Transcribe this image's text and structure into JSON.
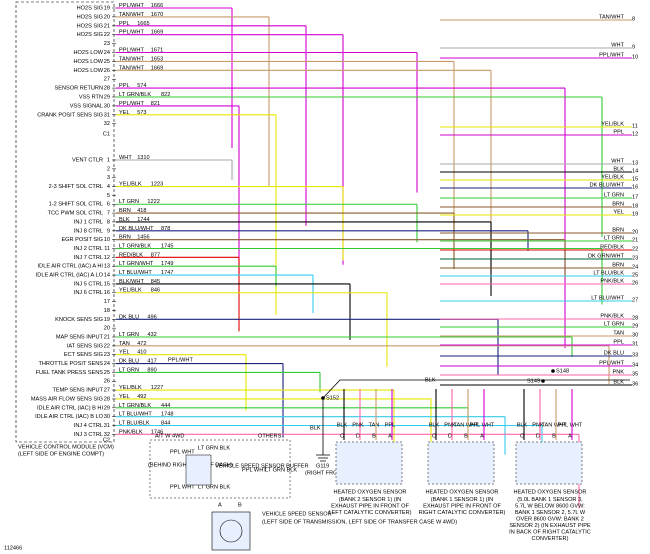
{
  "module": {
    "name": "VEHICLE CONTROL MODULE (VCM)",
    "location": "(LEFT SIDE OF ENGINE COMPT)",
    "c1": "C1",
    "c2": "C2"
  },
  "c1_rows": [
    {
      "pin": "19",
      "name": "HO2S SIG",
      "wire": "PPL/WHT",
      "circuit": "1666"
    },
    {
      "pin": "20",
      "name": "HO2S SIG",
      "wire": "TAN/WHT",
      "circuit": "1670"
    },
    {
      "pin": "21",
      "name": "HO2S SIG",
      "wire": "PPL",
      "circuit": "1665"
    },
    {
      "pin": "22",
      "name": "HO2S SIG",
      "wire": "PPL/WHT",
      "circuit": "1669"
    },
    {
      "pin": "23"
    },
    {
      "pin": "24",
      "name": "HO2S LOW",
      "wire": "PPL/WHT",
      "circuit": "1671"
    },
    {
      "pin": "25",
      "name": "HO2S LOW",
      "wire": "TAN/WHT",
      "circuit": "1653"
    },
    {
      "pin": "26",
      "name": "HO2S LOW",
      "wire": "TAN/WHT",
      "circuit": "1669"
    },
    {
      "pin": "27"
    },
    {
      "pin": "28",
      "name": "SENSOR RETURN",
      "wire": "PPL",
      "circuit": "574"
    },
    {
      "pin": "29",
      "name": "VSS RTN",
      "wire": "LT GRN/BLK",
      "circuit": "822"
    },
    {
      "pin": "30",
      "name": "VSS SIGNAL",
      "wire": "PPL/WHT",
      "circuit": "821"
    },
    {
      "pin": "31",
      "name": "CRANK POSIT SENS SIG",
      "wire": "YEL",
      "circuit": "573"
    },
    {
      "pin": "32"
    }
  ],
  "c2_rows": [
    {
      "pin": "1",
      "name": "VENT CTLR",
      "wire": "WHT",
      "circuit": "1310"
    },
    {
      "pin": "2"
    },
    {
      "pin": "3"
    },
    {
      "pin": "4",
      "name": "2-3 SHIFT SOL CTRL",
      "wire": "YEL/BLK",
      "circuit": "1223"
    },
    {
      "pin": "5"
    },
    {
      "pin": "6",
      "name": "1-2 SHIFT SOL CTRL",
      "wire": "LT GRN",
      "circuit": "1222"
    },
    {
      "pin": "7",
      "name": "TCC PWM SOL CTRL",
      "wire": "BRN",
      "circuit": "418"
    },
    {
      "pin": "8",
      "name": "INJ 1 CTRL",
      "wire": "BLK",
      "circuit": "1744"
    },
    {
      "pin": "9",
      "name": "INJ 8 CTRL",
      "wire": "DK BLU/WHT",
      "circuit": "878"
    },
    {
      "pin": "10",
      "name": "EGR POSIT SIG",
      "wire": "BRN",
      "circuit": "1456"
    },
    {
      "pin": "11",
      "name": "INJ 2 CTRL",
      "wire": "LT GRN/BLK",
      "circuit": "1745"
    },
    {
      "pin": "12",
      "name": "INJ 7 CTRL",
      "wire": "RED/BLK",
      "circuit": "877"
    },
    {
      "pin": "13",
      "name": "IDLE AIR CTRL (IAC) A HI",
      "wire": "LT GRN/WHT",
      "circuit": "1749"
    },
    {
      "pin": "14",
      "name": "IDLE AIR CTRL (IAC) A LO",
      "wire": "LT BLU/WHT",
      "circuit": "1747"
    },
    {
      "pin": "15",
      "name": "INJ 5 CTRL",
      "wire": "BLK/WHT",
      "circuit": "845"
    },
    {
      "pin": "16",
      "name": "INJ 6 CTRL",
      "wire": "YEL/BLK",
      "circuit": "846"
    },
    {
      "pin": "17"
    },
    {
      "pin": "18"
    },
    {
      "pin": "19",
      "name": "KNOCK SENS SIG",
      "wire": "DK BLU",
      "circuit": "496"
    },
    {
      "pin": "20"
    },
    {
      "pin": "21",
      "name": "MAP SENS INPUT",
      "wire": "LT GRN",
      "circuit": "432"
    },
    {
      "pin": "22",
      "name": "IAT SENS SIG",
      "wire": "TAN",
      "circuit": "472"
    },
    {
      "pin": "23",
      "name": "ECT SENS SIG",
      "wire": "YEL",
      "circuit": "410"
    },
    {
      "pin": "24",
      "name": "THROTTLE POSIT SENS",
      "wire": "DK BLU",
      "circuit": "417"
    },
    {
      "pin": "25",
      "name": "FUEL TANK PRESS SENS",
      "wire": "LT GRN",
      "circuit": "890"
    },
    {
      "pin": "26"
    },
    {
      "pin": "27",
      "name": "TEMP SENS INPUT",
      "wire": "YEL/BLK",
      "circuit": "1227"
    },
    {
      "pin": "28",
      "name": "MASS AIR FLOW SENS SIG",
      "wire": "YEL",
      "circuit": "492"
    },
    {
      "pin": "29",
      "name": "IDLE AIR CTRL (IAC) B HI",
      "wire": "LT GRN/BLK",
      "circuit": "444"
    },
    {
      "pin": "30",
      "name": "IDLE AIR CTRL (IAC) B LO",
      "wire": "LT BLU/WHT",
      "circuit": "1748"
    },
    {
      "pin": "31",
      "name": "INJ 4 CTRL",
      "wire": "LT BLU/BLK",
      "circuit": "844"
    },
    {
      "pin": "32",
      "name": "INJ 3 CTRL",
      "wire": "PNK/BLK",
      "circuit": "1746"
    }
  ],
  "right_labels": [
    {
      "wire": "TAN/WHT",
      "pin": "8"
    },
    {
      "wire": "WHT",
      "pin": "9"
    },
    {
      "wire": "PPL/WHT",
      "pin": "10"
    },
    {
      "wire": "YEL/BLK",
      "pin": "11"
    },
    {
      "wire": "PPL",
      "pin": "12"
    },
    {
      "wire": "WHT",
      "pin": "13"
    },
    {
      "wire": "BLK",
      "pin": "14"
    },
    {
      "wire": "YEL/BLK",
      "pin": "15"
    },
    {
      "wire": "DK BLU/WHT",
      "pin": "16"
    },
    {
      "wire": "LT GRN",
      "pin": "17"
    },
    {
      "wire": "BRN",
      "pin": "18"
    },
    {
      "wire": "YEL",
      "pin": "19"
    },
    {
      "wire": "BRN",
      "pin": "20"
    },
    {
      "wire": "LT GRN",
      "pin": "21"
    },
    {
      "wire": "RED/BLK",
      "pin": "22"
    },
    {
      "wire": "DK GRN/WHT",
      "pin": "23"
    },
    {
      "wire": "BRN",
      "pin": "24"
    },
    {
      "wire": "LT BLU/BLK",
      "pin": "25"
    },
    {
      "wire": "PNK/BLK",
      "pin": "26"
    },
    {
      "wire": "LT BLU/WHT",
      "pin": "27"
    },
    {
      "wire": "PNK/BLK",
      "pin": "28"
    },
    {
      "wire": "LT GRN",
      "pin": "29"
    },
    {
      "wire": "TAN",
      "pin": "30"
    },
    {
      "wire": "PPL",
      "pin": "31"
    },
    {
      "wire": "DK BLU",
      "pin": "33"
    },
    {
      "wire": "PPL/WHT",
      "pin": "34"
    },
    {
      "wire": "PNK",
      "pin": "35"
    },
    {
      "wire": "BLK",
      "pin": "36"
    }
  ],
  "fuel_tank_wire": "PPL/WHT",
  "splices": {
    "s152": "S152",
    "s149": "S149",
    "s148": "S148",
    "blk1": "BLK",
    "blk2": "BLK"
  },
  "ground": {
    "name": "G119",
    "location": "(RIGHT FRONT OF ENGINE BLOCK)"
  },
  "vss_area": {
    "at_4wd": "A/T W 4WD",
    "others": "OTHERS",
    "buffer_location": "(BEHIND RIGHT SIDE OF DASH)",
    "buffer": "VEHICLE SPEED SENSOR BUFFER",
    "w1": "PPL WHT",
    "w2": "LT GRN BLK",
    "w3": "PPL WHT",
    "w4": "LT GRN BLK",
    "w5": "PPL WHT",
    "w6": "LT GRN BLK",
    "sensor": "VEHICLE SPEED SENSOR",
    "sensor_location": "(LEFT SIDE OF TRANSMISSION, LEFT SIDE OF TRANSFER CASE W 4WD)",
    "pins": [
      "A",
      "B"
    ]
  },
  "sensors": [
    {
      "wires": [
        "BLK",
        "PNK",
        "TAN",
        "PPL"
      ],
      "pins": [
        "C",
        "D",
        "B",
        "A"
      ],
      "nca": [
        "NCA",
        "NCA",
        "NCA",
        "NCA"
      ],
      "title": "HEATED OXYGEN SENSOR",
      "detail": "(BANK 2 SENSOR 1) (IN EXHAUST PIPE IN FRONT OF LEFT CATALYTIC CONVERTER)"
    },
    {
      "wires": [
        "BLK",
        "PNK",
        "TAN WHT",
        "PPL WHT"
      ],
      "pins": [
        "C",
        "D",
        "B",
        "A"
      ],
      "nca": [
        "NCA",
        "NCA",
        "NCA",
        "NCA"
      ],
      "title": "HEATED OXYGEN SENSOR",
      "detail": "(BANK 1 SENSOR 1) (IN EXHAUST PIPE IN FRONT OF RIGHT CATALYTIC CONVERTER)"
    },
    {
      "wires": [
        "BLK",
        "PNK",
        "TAN WHT",
        "PPL WHT"
      ],
      "pins": [
        "C",
        "D",
        "B",
        "A"
      ],
      "nca": [
        "NCA",
        "NCA",
        "NCA",
        "NCA"
      ],
      "title": "HEATED OXYGEN SENSOR",
      "detail": "(5.0L BANK 1 SENSOR 3, 5.7L W BELOW 8600 GVW: BANK 1 SENSOR 2, 5.7L W OVER 8600 GVW: BANK 2 SENSOR 2) (IN EXHAUST PIPE IN BACK OF RIGHT CATALYTIC CONVERTER)"
    }
  ],
  "figure_id": "112466"
}
